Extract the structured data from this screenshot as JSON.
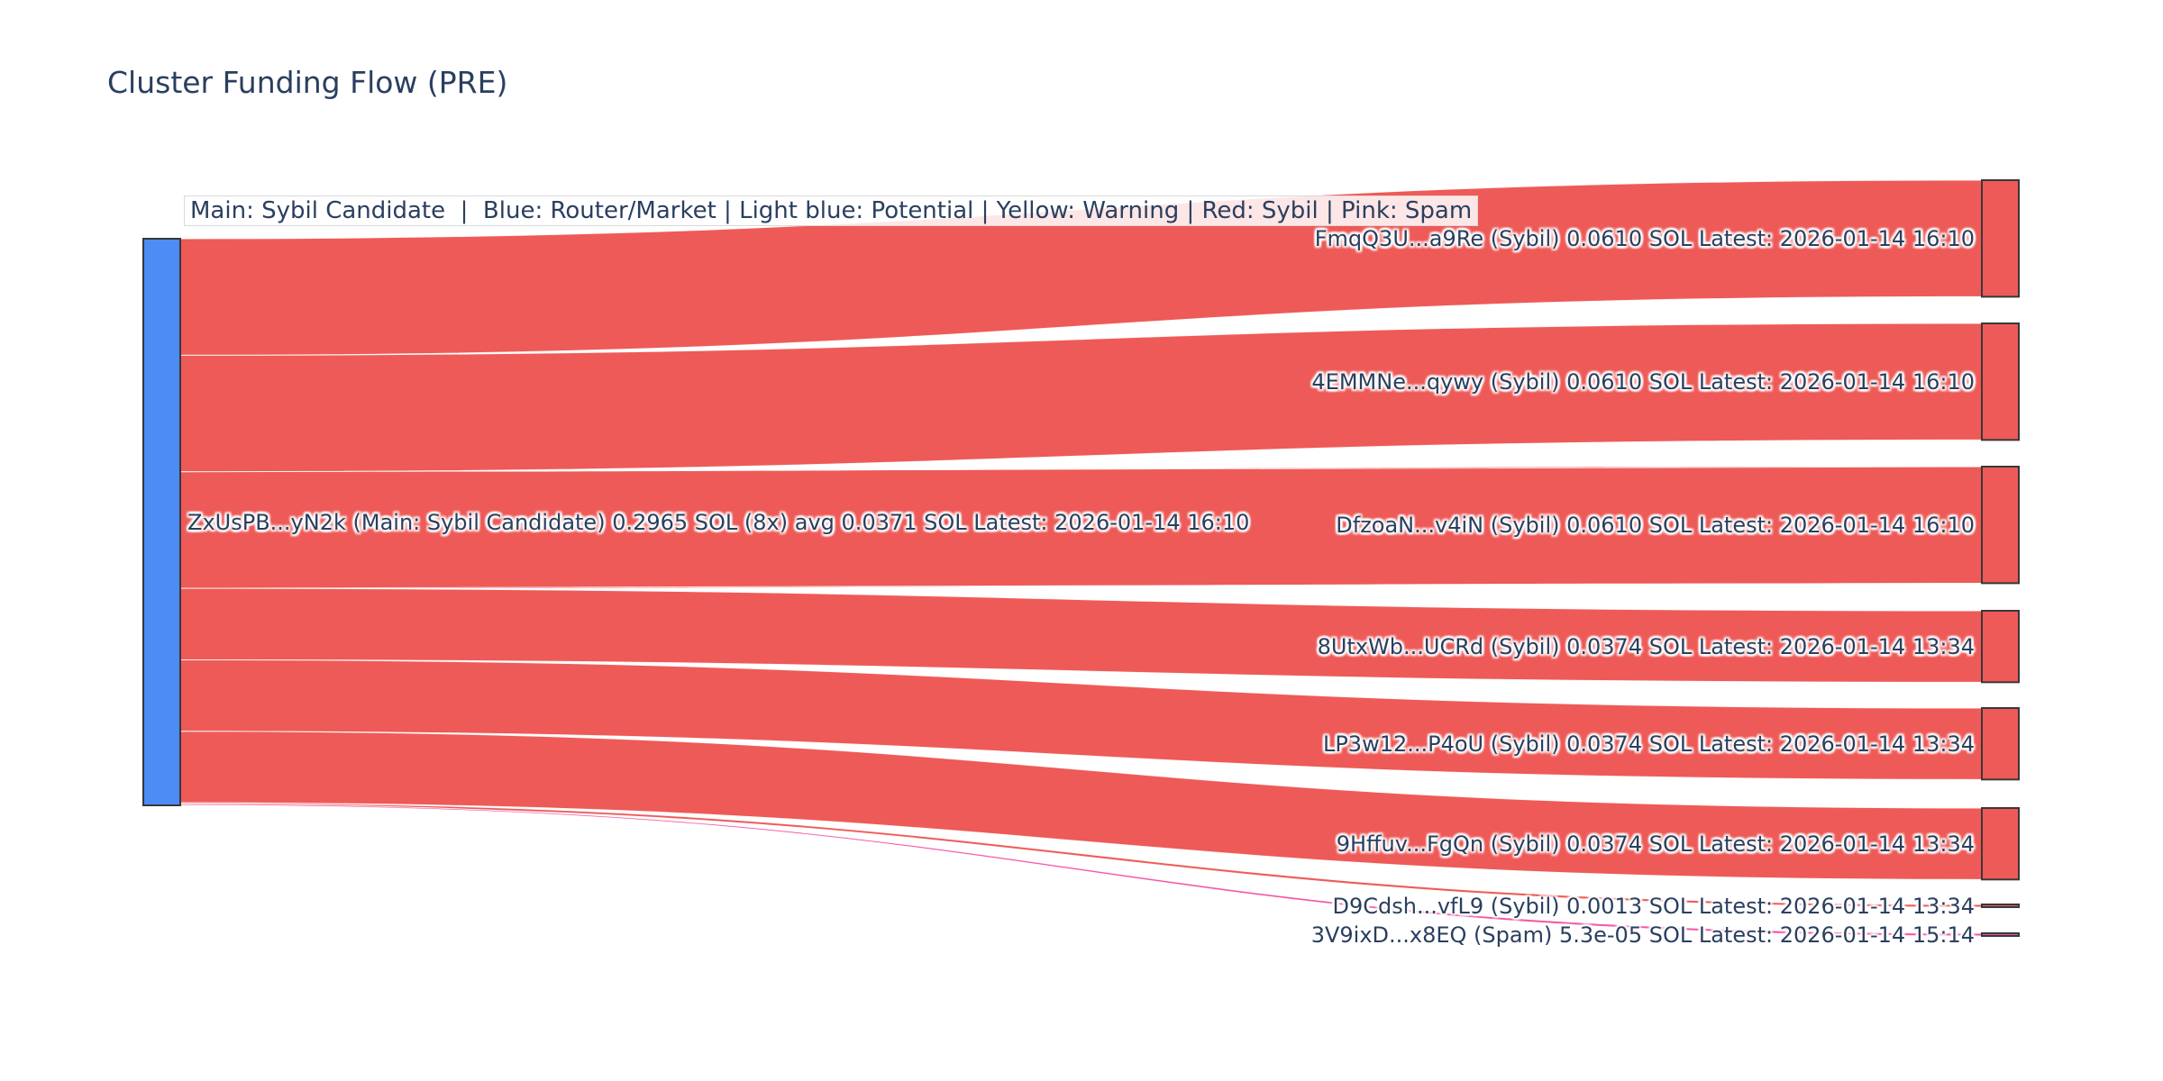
{
  "title": "Cluster Funding Flow (PRE)",
  "legend_note": "Main: Sybil Candidate  |  Blue: Router/Market | Light blue: Potential | Yellow: Warning | Red: Sybil | Pink: Spam",
  "colors": {
    "main_node_blue": "#4d8bf5",
    "sybil_red": "#ee5a57",
    "spam_pink": "#f456a5",
    "node_border": "#383838",
    "label_text": "#2a3f5f",
    "title_text": "#2a3f5f"
  },
  "chart_data": {
    "type": "sankey",
    "unit": "SOL",
    "title": "Cluster Funding Flow (PRE)",
    "source": {
      "label": "ZxUsPB...yN2k (Main: Sybil Candidate) 0.2965 SOL (8x) avg 0.0371 SOL Latest: 2026-01-14 16:10",
      "address": "ZxUsPB...yN2k",
      "category": "Main: Sybil Candidate",
      "total_sol": 0.2965,
      "tx_count": 8,
      "avg_sol": 0.0371,
      "latest": "2026-01-14 16:10"
    },
    "targets": [
      {
        "label": "FmqQ3U...a9Re (Sybil) 0.0610 SOL Latest: 2026-01-14 16:10",
        "address": "FmqQ3U...a9Re",
        "category": "Sybil",
        "sol": 0.061,
        "latest": "2026-01-14 16:10"
      },
      {
        "label": "4EMMNe...qywy (Sybil) 0.0610 SOL Latest: 2026-01-14 16:10",
        "address": "4EMMNe...qywy",
        "category": "Sybil",
        "sol": 0.061,
        "latest": "2026-01-14 16:10"
      },
      {
        "label": "DfzoaN...v4iN (Sybil) 0.0610 SOL Latest: 2026-01-14 16:10",
        "address": "DfzoaN...v4iN",
        "category": "Sybil",
        "sol": 0.061,
        "latest": "2026-01-14 16:10"
      },
      {
        "label": "8UtxWb...UCRd (Sybil) 0.0374 SOL Latest: 2026-01-14 13:34",
        "address": "8UtxWb...UCRd",
        "category": "Sybil",
        "sol": 0.0374,
        "latest": "2026-01-14 13:34"
      },
      {
        "label": "LP3w12...P4oU (Sybil) 0.0374 SOL Latest: 2026-01-14 13:34",
        "address": "LP3w12...P4oU",
        "category": "Sybil",
        "sol": 0.0374,
        "latest": "2026-01-14 13:34"
      },
      {
        "label": "9Hffuv...FgQn (Sybil) 0.0374 SOL Latest: 2026-01-14 13:34",
        "address": "9Hffuv...FgQn",
        "category": "Sybil",
        "sol": 0.0374,
        "latest": "2026-01-14 13:34"
      },
      {
        "label": "D9Cdsh...vfL9 (Sybil) 0.0013 SOL Latest: 2026-01-14 13:34",
        "address": "D9Cdsh...vfL9",
        "category": "Sybil",
        "sol": 0.0013,
        "latest": "2026-01-14 13:34"
      },
      {
        "label": "3V9ixD...x8EQ (Spam) 5.3e-05 SOL Latest: 2026-01-14 15:14",
        "address": "3V9ixD...x8EQ",
        "category": "Spam",
        "sol": 5.3e-05,
        "latest": "2026-01-14 15:14"
      }
    ]
  }
}
